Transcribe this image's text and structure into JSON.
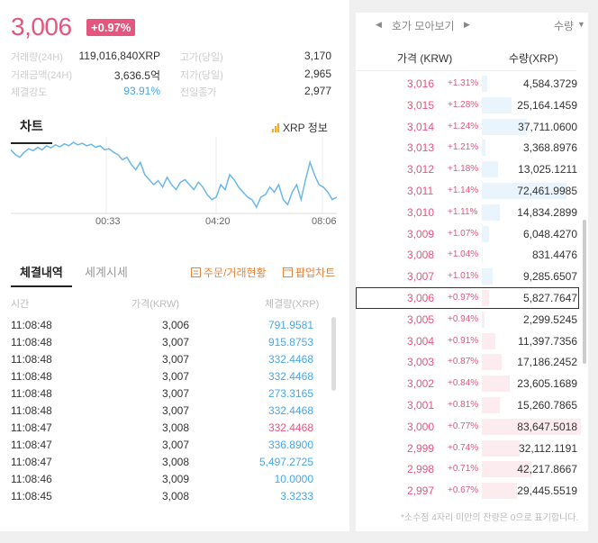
{
  "header": {
    "price": "3,006",
    "change": "+0.97%"
  },
  "stats": [
    {
      "label": "거래량(24H)",
      "value": "119,016,840XRP",
      "label2": "고가(당일)",
      "value2": "3,170"
    },
    {
      "label": "거래금액(24H)",
      "value": "3,636.5억",
      "label2": "저가(당일)",
      "value2": "2,965"
    },
    {
      "label": "체결강도",
      "value": "93.91%",
      "label2": "전일종가",
      "value2": "2,977"
    }
  ],
  "chart_section": {
    "tab": "차트",
    "info_link": "XRP 정보",
    "times": [
      "00:33",
      "04:20",
      "08:06"
    ]
  },
  "chart_data": {
    "type": "line",
    "series": [
      {
        "values": [
          3060,
          3050,
          3045,
          3055,
          3062,
          3058,
          3065,
          3060,
          3068,
          3064,
          3070,
          3066,
          3072,
          3068,
          3075,
          3070,
          3073,
          3068,
          3071,
          3065,
          3068,
          3060,
          3062,
          3055,
          3050,
          3040,
          3045,
          3030,
          3020,
          3035,
          3010,
          3000,
          2990,
          2998,
          2985,
          3005,
          2990,
          2980,
          2995,
          3000,
          2990,
          2980,
          2995,
          2985,
          2970,
          2960,
          2965,
          2990,
          2980,
          3010,
          3000,
          2985,
          2975,
          2965,
          2960,
          2945,
          2965,
          2970,
          2985,
          2975,
          2990,
          2960,
          2950,
          2975,
          2990,
          2960,
          3000,
          3035,
          3010,
          2990,
          2985,
          2975,
          2960,
          2965
        ]
      }
    ],
    "x_ticks": [
      "00:33",
      "04:20",
      "08:06"
    ],
    "grid": true
  },
  "trade_section": {
    "tabs": [
      "체결내역",
      "세계시세"
    ],
    "order_link": "주문/거래현황",
    "popup_link": "팝업차트",
    "columns": [
      "시간",
      "가격(KRW)",
      "체결량(XRP)"
    ],
    "rows": [
      {
        "time": "11:08:48",
        "price": "3,006",
        "volume": "791.9581",
        "side": "buy"
      },
      {
        "time": "11:08:48",
        "price": "3,007",
        "volume": "915.8753",
        "side": "buy"
      },
      {
        "time": "11:08:48",
        "price": "3,007",
        "volume": "332.4468",
        "side": "buy"
      },
      {
        "time": "11:08:48",
        "price": "3,007",
        "volume": "332.4468",
        "side": "buy"
      },
      {
        "time": "11:08:48",
        "price": "3,007",
        "volume": "273.3165",
        "side": "buy"
      },
      {
        "time": "11:08:48",
        "price": "3,007",
        "volume": "332.4468",
        "side": "buy"
      },
      {
        "time": "11:08:47",
        "price": "3,008",
        "volume": "332.4468",
        "side": "sell"
      },
      {
        "time": "11:08:47",
        "price": "3,007",
        "volume": "336.8900",
        "side": "buy"
      },
      {
        "time": "11:08:47",
        "price": "3,008",
        "volume": "5,497.2725",
        "side": "buy"
      },
      {
        "time": "11:08:46",
        "price": "3,009",
        "volume": "10.0000",
        "side": "buy"
      },
      {
        "time": "11:08:45",
        "price": "3,008",
        "volume": "3.3233",
        "side": "buy"
      }
    ]
  },
  "orderbook": {
    "title": "호가 모아보기",
    "qty_select": "수량",
    "col_price": "가격 (KRW)",
    "col_qty": "수량(XRP)",
    "colors": {
      "ask_bg": "#eaf4fc",
      "bid_bg": "#fdecef",
      "price": "#e5567e"
    },
    "rows": [
      {
        "price": "3,016",
        "change": "+1.31%",
        "qty": "4,584.3729",
        "fill": 0.05,
        "side": "ask"
      },
      {
        "price": "3,015",
        "change": "+1.28%",
        "qty": "25,164.1459",
        "fill": 0.3,
        "side": "ask"
      },
      {
        "price": "3,014",
        "change": "+1.24%",
        "qty": "37,711.0600",
        "fill": 0.45,
        "side": "ask"
      },
      {
        "price": "3,013",
        "change": "+1.21%",
        "qty": "3,368.8976",
        "fill": 0.04,
        "side": "ask"
      },
      {
        "price": "3,012",
        "change": "+1.18%",
        "qty": "13,025.1211",
        "fill": 0.16,
        "side": "ask"
      },
      {
        "price": "3,011",
        "change": "+1.14%",
        "qty": "72,461.9985",
        "fill": 0.85,
        "side": "ask"
      },
      {
        "price": "3,010",
        "change": "+1.11%",
        "qty": "14,834.2899",
        "fill": 0.18,
        "side": "ask"
      },
      {
        "price": "3,009",
        "change": "+1.07%",
        "qty": "6,048.4270",
        "fill": 0.07,
        "side": "ask"
      },
      {
        "price": "3,008",
        "change": "+1.04%",
        "qty": "831.4476",
        "fill": 0.01,
        "side": "ask"
      },
      {
        "price": "3,007",
        "change": "+1.01%",
        "qty": "9,285.6507",
        "fill": 0.11,
        "side": "ask"
      },
      {
        "price": "3,006",
        "change": "+0.97%",
        "qty": "5,827.7647",
        "fill": 0.07,
        "side": "bid",
        "current": true
      },
      {
        "price": "3,005",
        "change": "+0.94%",
        "qty": "2,299.5245",
        "fill": 0.03,
        "side": "bid"
      },
      {
        "price": "3,004",
        "change": "+0.91%",
        "qty": "11,397.7356",
        "fill": 0.14,
        "side": "bid"
      },
      {
        "price": "3,003",
        "change": "+0.87%",
        "qty": "17,186.2452",
        "fill": 0.2,
        "side": "bid"
      },
      {
        "price": "3,002",
        "change": "+0.84%",
        "qty": "23,605.1689",
        "fill": 0.28,
        "side": "bid"
      },
      {
        "price": "3,001",
        "change": "+0.81%",
        "qty": "15,260.7865",
        "fill": 0.18,
        "side": "bid"
      },
      {
        "price": "3,000",
        "change": "+0.77%",
        "qty": "83,647.5018",
        "fill": 1.0,
        "side": "bid"
      },
      {
        "price": "2,999",
        "change": "+0.74%",
        "qty": "32,112.1191",
        "fill": 0.38,
        "side": "bid"
      },
      {
        "price": "2,998",
        "change": "+0.71%",
        "qty": "42,217.8667",
        "fill": 0.5,
        "side": "bid"
      },
      {
        "price": "2,997",
        "change": "+0.67%",
        "qty": "29,445.5519",
        "fill": 0.35,
        "side": "bid"
      }
    ],
    "footnote": "*소수점 4자리 미만의 잔량은 0으로 표기합니다."
  }
}
